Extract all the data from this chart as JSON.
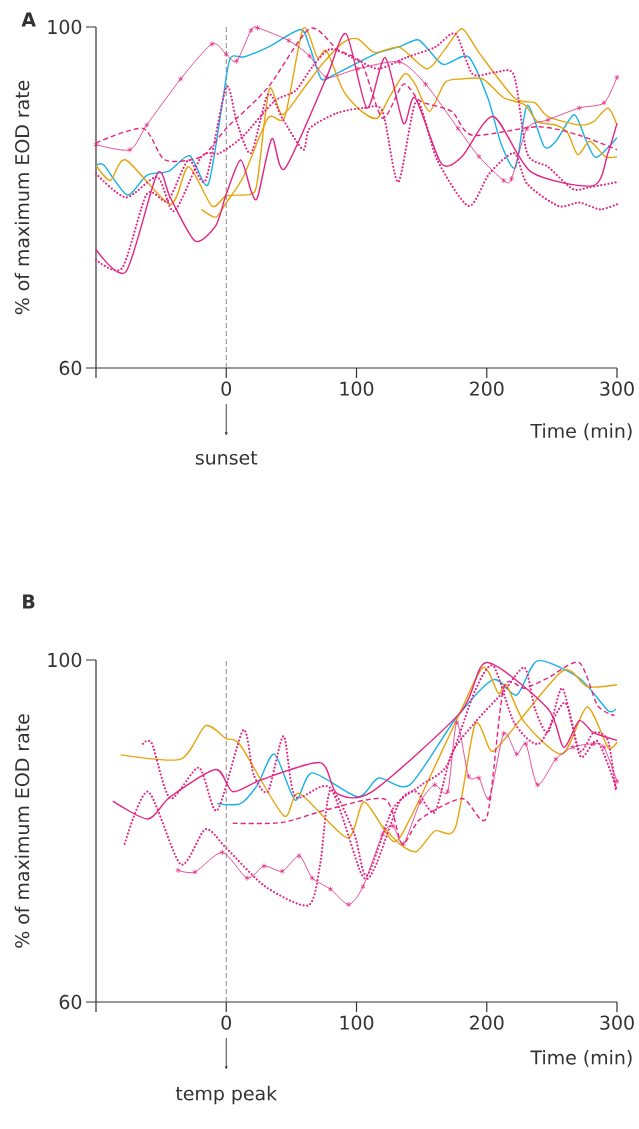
{
  "chart_data": [
    {
      "type": "line",
      "title": "A",
      "xlabel": "Time (min)",
      "ylabel": "% of maximum EOD rate",
      "xlim": [
        -100,
        300
      ],
      "xticks": [
        {
          "value": -100,
          "label": null
        },
        0,
        100,
        200,
        300
      ],
      "ylim": [
        60,
        100
      ],
      "yticks": [
        60,
        100
      ],
      "ref_lines": [
        {
          "axis": "x",
          "value": 0,
          "color": "#888888",
          "line_style": "dashed"
        }
      ],
      "annotations": [
        "sunset"
      ],
      "series": [
        {
          "color": "#1ab0e8",
          "line_style": "solid",
          "x": [
            -100,
            -94,
            -76,
            -61,
            -44,
            -28,
            -14,
            -3,
            3,
            14,
            33,
            57,
            64,
            73,
            83,
            98,
            117,
            133,
            147,
            156,
            167,
            186,
            201,
            211,
            222,
            231,
            244,
            253,
            267,
            276,
            284,
            300
          ],
          "values": [
            83.7,
            83.8,
            80.3,
            82.6,
            83.1,
            84.9,
            81.5,
            91.1,
            96.3,
            96.5,
            97.7,
            99.7,
            97.7,
            93.9,
            94.4,
            95.6,
            97,
            97.7,
            98.5,
            97.2,
            95.6,
            96.5,
            91.6,
            86.3,
            83.5,
            90.8,
            86,
            86.6,
            89.7,
            86.8,
            84.7,
            87
          ]
        },
        {
          "color": "#e6a50f",
          "line_style": "solid",
          "x": [
            -100,
            -89,
            -77,
            -43,
            -29,
            -11,
            0,
            19,
            24,
            33,
            43,
            59,
            74,
            90,
            101,
            114,
            133,
            154,
            168,
            181,
            194,
            221,
            237,
            247,
            271,
            282,
            293,
            300
          ],
          "values": [
            83.8,
            82,
            84.4,
            79.2,
            83.6,
            79,
            80.2,
            80.4,
            82,
            92.7,
            89.7,
            92.7,
            95.7,
            98.2,
            98.6,
            97,
            97.6,
            95.1,
            97.4,
            99.8,
            97,
            91.7,
            91.1,
            89.5,
            88.5,
            88.9,
            90.5,
            88.5
          ]
        },
        {
          "color": "#e6a50f",
          "line_style": "solid",
          "x": [
            -19,
            -8,
            0,
            13,
            32,
            45,
            59,
            70,
            77,
            90,
            104,
            116,
            125,
            137,
            145,
            156,
            168,
            181,
            197,
            213,
            229,
            239,
            253,
            262,
            270,
            279,
            291,
            300
          ],
          "values": [
            78.6,
            77.7,
            79.4,
            82.4,
            89.3,
            89.5,
            99.8,
            96.4,
            97.2,
            92.5,
            90.1,
            89.3,
            91.7,
            94.5,
            93.3,
            90.1,
            93.5,
            93.9,
            93.9,
            91.7,
            90.9,
            88.9,
            88.5,
            87.6,
            85,
            86.6,
            84.8,
            84.8
          ]
        },
        {
          "color": "#e5247f",
          "line_style": "solid",
          "x": [
            -100,
            -77,
            -53,
            -43,
            -24,
            -8,
            0,
            11,
            19,
            24,
            35,
            45,
            77,
            92,
            108,
            122,
            136,
            145,
            165,
            181,
            205,
            234,
            282,
            293,
            300
          ],
          "values": [
            73.9,
            71.3,
            82.8,
            80,
            74.9,
            76.7,
            80.4,
            84.4,
            80.8,
            80,
            86.9,
            83.4,
            94.1,
            99.2,
            90.5,
            96.4,
            88.7,
            91.7,
            84,
            84.8,
            89.5,
            83,
            81.4,
            85.2,
            88.7
          ]
        },
        {
          "color": "#e5247f",
          "line_style": "solid",
          "marker": "cross",
          "x": [
            -100,
            -74,
            -61,
            -35,
            -11,
            0,
            8,
            19,
            24,
            48,
            64,
            77,
            101,
            133,
            153,
            178,
            194,
            213,
            219,
            231,
            247,
            271,
            290,
            300
          ],
          "values": [
            86.2,
            85.6,
            88.5,
            93.9,
            98,
            96.8,
            96,
            99.6,
            99.9,
            98.4,
            96.6,
            94.1,
            95.1,
            95.9,
            93.3,
            88.1,
            84.8,
            82,
            82.2,
            88.1,
            89.1,
            90.5,
            91.1,
            94.1
          ]
        },
        {
          "color": "#e5247f",
          "line_style": "dashed",
          "x": [
            -100,
            -64,
            -47,
            -19,
            0,
            32,
            64,
            85,
            104,
            120,
            136,
            149,
            173,
            189,
            239,
            271,
            300
          ],
          "values": [
            86.4,
            88.1,
            84.4,
            84.8,
            88.1,
            92.9,
            99.8,
            97.4,
            95.7,
            89.3,
            93.3,
            91.3,
            90.1,
            87.3,
            88.3,
            87.3,
            85.6
          ]
        },
        {
          "color": "#e5247f",
          "line_style": "dotted",
          "x": [
            -100,
            -80,
            -61,
            -45,
            -29,
            -16,
            0,
            8,
            19,
            32,
            43,
            59,
            64,
            85,
            106,
            120,
            132,
            146,
            162,
            186,
            202,
            221,
            231,
            255,
            271,
            287,
            300
          ],
          "values": [
            72.7,
            71.7,
            80.4,
            79.6,
            84.4,
            82,
            92.9,
            88.9,
            85.2,
            92.1,
            89.3,
            85.6,
            88.1,
            89.9,
            90.5,
            90.1,
            81.8,
            91.3,
            84.4,
            79,
            82.8,
            85.2,
            81.6,
            79,
            79.4,
            78.6,
            79.2
          ]
        },
        {
          "color": "#e5247f",
          "line_style": "dotted",
          "x": [
            -100,
            -77,
            -53,
            -40,
            -19,
            -5,
            13,
            37,
            53,
            66,
            80,
            101,
            117,
            138,
            160,
            176,
            189,
            207,
            221,
            231,
            247,
            266,
            279,
            300
          ],
          "values": [
            82.8,
            80,
            82.4,
            78.4,
            84.8,
            85.2,
            87.2,
            91.3,
            92.5,
            95.3,
            97.4,
            96.1,
            95.1,
            96.4,
            97.6,
            99.2,
            94.5,
            94.7,
            94.3,
            85.2,
            83.6,
            81,
            81.2,
            81.8
          ]
        }
      ]
    },
    {
      "type": "line",
      "title": "B",
      "xlabel": "Time (min)",
      "ylabel": "% of maximum EOD rate",
      "xlim": [
        -100,
        300
      ],
      "xticks": [
        {
          "value": -100,
          "label": null
        },
        0,
        100,
        200,
        300
      ],
      "ylim": [
        60,
        100
      ],
      "yticks": [
        60,
        100
      ],
      "ref_lines": [
        {
          "axis": "x",
          "value": 0,
          "color": "#888888",
          "line_style": "dashed"
        }
      ],
      "annotations": [
        "temp peak"
      ],
      "series": [
        {
          "color": "#1ab0e8",
          "line_style": "solid",
          "x": [
            -7,
            11,
            24,
            37,
            53,
            66,
            101,
            117,
            141,
            176,
            205,
            223,
            239,
            271,
            293,
            299
          ],
          "values": [
            83.2,
            83.2,
            85.4,
            89,
            83.6,
            86.8,
            84,
            86.2,
            85.4,
            93.1,
            97.7,
            95.9,
            99.9,
            97.9,
            94.1,
            94.3
          ]
        },
        {
          "color": "#e6a50f",
          "line_style": "solid",
          "x": [
            -81,
            -35,
            -16,
            0,
            11,
            44,
            56,
            93,
            106,
            128,
            141,
            176,
            197,
            209,
            215,
            229,
            258,
            277,
            293,
            300
          ],
          "values": [
            88.9,
            88.4,
            92.3,
            90.8,
            90,
            81.8,
            84.4,
            79.2,
            83.4,
            78.8,
            81.4,
            92.7,
            99.1,
            96.1,
            97.1,
            92.7,
            89,
            94.5,
            89.8,
            90.4
          ]
        },
        {
          "color": "#e6a50f",
          "line_style": "solid",
          "x": [
            120,
            133,
            146,
            160,
            176,
            191,
            203,
            213,
            258,
            277,
            300
          ],
          "values": [
            80.6,
            78.5,
            77.6,
            80,
            80.4,
            92.5,
            89.4,
            90.6,
            98.7,
            96.9,
            97.1
          ]
        },
        {
          "color": "#e5247f",
          "line_style": "solid",
          "x": [
            -87,
            -60,
            -43,
            -8,
            5,
            27,
            72,
            85,
            112,
            180,
            200,
            247,
            259,
            271,
            282,
            300
          ],
          "values": [
            83.5,
            81.4,
            84,
            87.2,
            84.6,
            86,
            88,
            84.4,
            84.6,
            93.9,
            99.7,
            94.3,
            89.8,
            92.9,
            91.5,
            90.6
          ]
        },
        {
          "color": "#e5247f",
          "line_style": "solid",
          "marker": "cross",
          "x": [
            -37,
            -24,
            -3,
            16,
            29,
            43,
            56,
            66,
            80,
            94,
            105,
            120,
            128,
            136,
            149,
            160,
            170,
            177,
            186,
            194,
            202,
            213,
            223,
            230,
            239,
            253,
            266,
            282,
            290,
            300
          ],
          "values": [
            75.4,
            75.2,
            77.5,
            74.5,
            75.9,
            75.3,
            77.1,
            74.5,
            73.2,
            71.4,
            73.5,
            79.6,
            80.6,
            78.5,
            83.4,
            85.4,
            84.6,
            92.7,
            86.4,
            86.2,
            83.8,
            91.4,
            89,
            90.2,
            85.4,
            88.4,
            89.8,
            90.2,
            89.8,
            85.8
          ]
        },
        {
          "color": "#e5247f",
          "line_style": "dashed",
          "x": [
            5,
            43,
            80,
            122,
            135,
            149,
            181,
            200,
            213,
            229,
            247,
            271,
            285,
            298
          ],
          "values": [
            80.9,
            81,
            82.6,
            83.7,
            78.5,
            81.4,
            83.8,
            81.6,
            96.7,
            96.7,
            97.9,
            99.7,
            94.7,
            93.5
          ]
        },
        {
          "color": "#e5247f",
          "line_style": "dotted",
          "x": [
            -78,
            -60,
            -35,
            -16,
            0,
            30,
            63,
            72,
            80,
            98,
            108,
            128,
            150,
            170,
            191,
            205,
            221,
            240,
            260,
            272,
            285,
            300
          ],
          "values": [
            78.5,
            84.6,
            76.1,
            80.2,
            78,
            73.5,
            71.3,
            76,
            84.8,
            79.8,
            74.8,
            82.6,
            85.4,
            87.8,
            96.4,
            99.3,
            92.7,
            90.2,
            95,
            88.7,
            90.5,
            84.8
          ]
        },
        {
          "color": "#e5247f",
          "line_style": "dotted",
          "x": [
            -64,
            -57,
            -43,
            -21,
            -7,
            13,
            21,
            32,
            44,
            53,
            80,
            104,
            114,
            133,
            146,
            160,
            173,
            191,
            213,
            229,
            237,
            247,
            258,
            271,
            282,
            293,
            299
          ],
          "values": [
            90.2,
            90.2,
            83.8,
            87.4,
            82.4,
            91.8,
            86.6,
            84.6,
            91.1,
            84,
            85,
            74.9,
            75.7,
            83.4,
            84.6,
            82.2,
            89,
            92.7,
            96.3,
            99.1,
            94.3,
            91.5,
            96.7,
            89.4,
            91.5,
            90.6,
            84.8
          ]
        }
      ]
    }
  ]
}
